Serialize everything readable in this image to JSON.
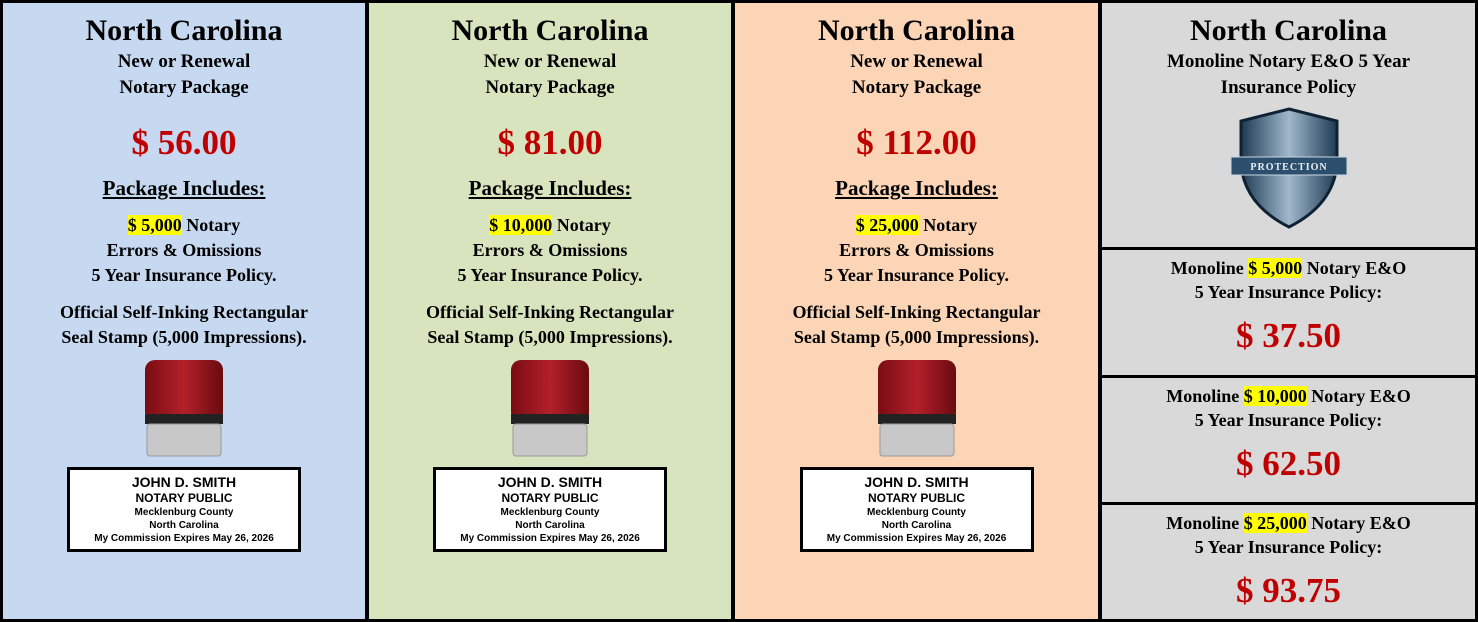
{
  "packages": [
    {
      "title": "North Carolina",
      "subtitle": [
        "New or Renewal",
        "Notary Package"
      ],
      "price": "$ 56.00",
      "includes_heading": "Package Includes:",
      "coverage_amount": "$ 5,000",
      "coverage_lines": [
        "Notary",
        "Errors & Omissions",
        "5 Year Insurance Policy."
      ],
      "stamp_text": [
        "Official Self-Inking Rectangular",
        "Seal Stamp (5,000 Impressions)."
      ],
      "seal": [
        "JOHN D. SMITH",
        "NOTARY PUBLIC",
        "Mecklenburg County",
        "North Carolina",
        "My Commission Expires May 26, 2026"
      ]
    },
    {
      "title": "North Carolina",
      "subtitle": [
        "New or Renewal",
        "Notary Package"
      ],
      "price": "$ 81.00",
      "includes_heading": "Package Includes:",
      "coverage_amount": "$ 10,000",
      "coverage_lines": [
        "Notary",
        "Errors & Omissions",
        "5 Year Insurance Policy."
      ],
      "stamp_text": [
        "Official Self-Inking Rectangular",
        "Seal Stamp (5,000 Impressions)."
      ],
      "seal": [
        "JOHN D. SMITH",
        "NOTARY PUBLIC",
        "Mecklenburg County",
        "North Carolina",
        "My Commission Expires May 26, 2026"
      ]
    },
    {
      "title": "North Carolina",
      "subtitle": [
        "New or Renewal",
        "Notary Package"
      ],
      "price": "$ 112.00",
      "includes_heading": "Package Includes:",
      "coverage_amount": "$ 25,000",
      "coverage_lines": [
        "Notary",
        "Errors & Omissions",
        "5 Year Insurance Policy."
      ],
      "stamp_text": [
        "Official Self-Inking Rectangular",
        "Seal Stamp (5,000 Impressions)."
      ],
      "seal": [
        "JOHN D. SMITH",
        "NOTARY PUBLIC",
        "Mecklenburg County",
        "North Carolina",
        "My Commission Expires May 26, 2026"
      ]
    }
  ],
  "monoline": {
    "title": "North Carolina",
    "subtitle": [
      "Monoline Notary E&O 5 Year",
      "Insurance Policy"
    ],
    "shield_label": "PROTECTION",
    "options": [
      {
        "prefix": "Monoline",
        "amount": "$ 5,000",
        "suffix": "Notary E&O",
        "line2": "5 Year Insurance Policy:",
        "price": "$ 37.50"
      },
      {
        "prefix": "Monoline",
        "amount": "$ 10,000",
        "suffix": "Notary E&O",
        "line2": "5 Year Insurance Policy:",
        "price": "$ 62.50"
      },
      {
        "prefix": "Monoline",
        "amount": "$ 25,000",
        "suffix": "Notary E&O",
        "line2": "5 Year Insurance Policy:",
        "price": "$ 93.75"
      }
    ]
  }
}
